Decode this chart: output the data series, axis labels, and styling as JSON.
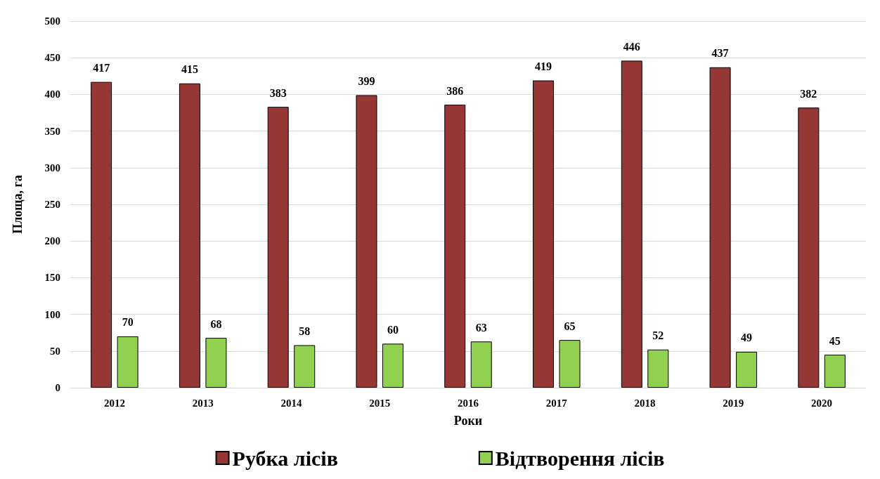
{
  "chart_data": {
    "type": "bar",
    "xlabel": "Роки",
    "ylabel": "Площа, га",
    "categories": [
      "2012",
      "2013",
      "2014",
      "2015",
      "2016",
      "2017",
      "2018",
      "2019",
      "2020"
    ],
    "series": [
      {
        "name": "Рубка лісів",
        "color": "#953735",
        "values": [
          417,
          415,
          383,
          399,
          386,
          419,
          446,
          437,
          382
        ]
      },
      {
        "name": "Відтворення лісів",
        "color": "#92d050",
        "values": [
          70,
          68,
          58,
          60,
          63,
          65,
          52,
          49,
          45
        ]
      }
    ],
    "ylim": [
      0,
      500
    ],
    "yticks": [
      0,
      50,
      100,
      150,
      200,
      250,
      300,
      350,
      400,
      450,
      500
    ],
    "grid": "y",
    "legend": "bottom",
    "data_labels": true
  }
}
